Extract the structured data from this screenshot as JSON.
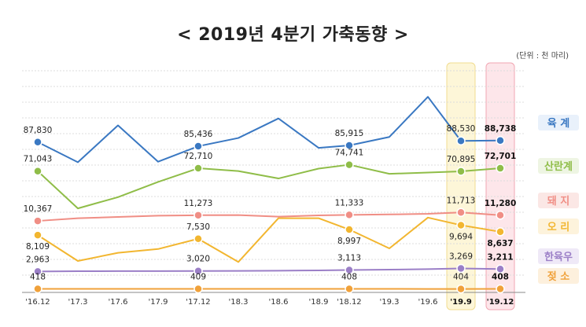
{
  "chart_data": {
    "type": "line",
    "title": "< 2019년 4분기 가축동향 >",
    "unit_note": "(단위 : 천 마리)",
    "categories": [
      "'16.12",
      "'17.3",
      "'17.6",
      "'17.9",
      "'17.12",
      "'18.3",
      "'18.6",
      "'18.9",
      "'18.12",
      "'19.3",
      "'19.6",
      "'19.9",
      "'19.12"
    ],
    "highlight_categories": [
      "'19.9",
      "'19.12"
    ],
    "ylim": [
      0,
      100000
    ],
    "grid": true,
    "legend_position": "right",
    "series": [
      {
        "name": "육 계",
        "color": "#3a78c2",
        "legend_bg": "#e9f1fb",
        "values": [
          87830,
          76200,
          97500,
          76500,
          85436,
          90200,
          101500,
          84500,
          85915,
          90800,
          114000,
          88530,
          88738
        ],
        "labels": {
          "0": "87,830",
          "4": "85,436",
          "8": "85,915",
          "11": "88,530",
          "12": "88,738"
        }
      },
      {
        "name": "산란계",
        "color": "#8fbd48",
        "legend_bg": "#eef5e3",
        "values": [
          71043,
          49500,
          56000,
          64800,
          72710,
          71100,
          66800,
          72500,
          74741,
          69500,
          70200,
          70895,
          72701
        ],
        "labels": {
          "0": "71,043",
          "4": "72,710",
          "8": "74,741",
          "11": "70,895",
          "12": "72,701"
        }
      },
      {
        "name": "돼 지",
        "color": "#f08e85",
        "legend_bg": "#fbe7e5",
        "values": [
          10367,
          10800,
          11000,
          11200,
          11273,
          11300,
          11050,
          11250,
          11333,
          11400,
          11500,
          11713,
          11280
        ],
        "labels": {
          "0": "10,367",
          "4": "11,273",
          "8": "11,333",
          "11": "11,713",
          "12": "11,280"
        }
      },
      {
        "name": "오 리",
        "color": "#f2b630",
        "legend_bg": "#fdf3dc",
        "values": [
          8109,
          4000,
          5300,
          5900,
          7530,
          3900,
          10800,
          10800,
          8997,
          6000,
          10900,
          9694,
          8637
        ],
        "labels": {
          "0": "8,109",
          "4": "7,530",
          "8": "8,997",
          "11": "9,694",
          "12": "8,637"
        }
      },
      {
        "name": "한육우",
        "color": "#9b7fc7",
        "legend_bg": "#efe9f7",
        "values": [
          2963,
          3000,
          3005,
          3010,
          3020,
          3030,
          3050,
          3080,
          3113,
          3150,
          3200,
          3269,
          3211
        ],
        "labels": {
          "0": "2,963",
          "4": "3,020",
          "8": "3,113",
          "11": "3,269",
          "12": "3,211"
        }
      },
      {
        "name": "젖 소",
        "color": "#f0a13a",
        "legend_bg": "#fdf0dd",
        "values": [
          418,
          415,
          412,
          410,
          409,
          409,
          408,
          408,
          408,
          407,
          406,
          404,
          408
        ],
        "labels": {
          "0": "418",
          "4": "409",
          "8": "408",
          "11": "404",
          "12": "408"
        }
      }
    ]
  }
}
